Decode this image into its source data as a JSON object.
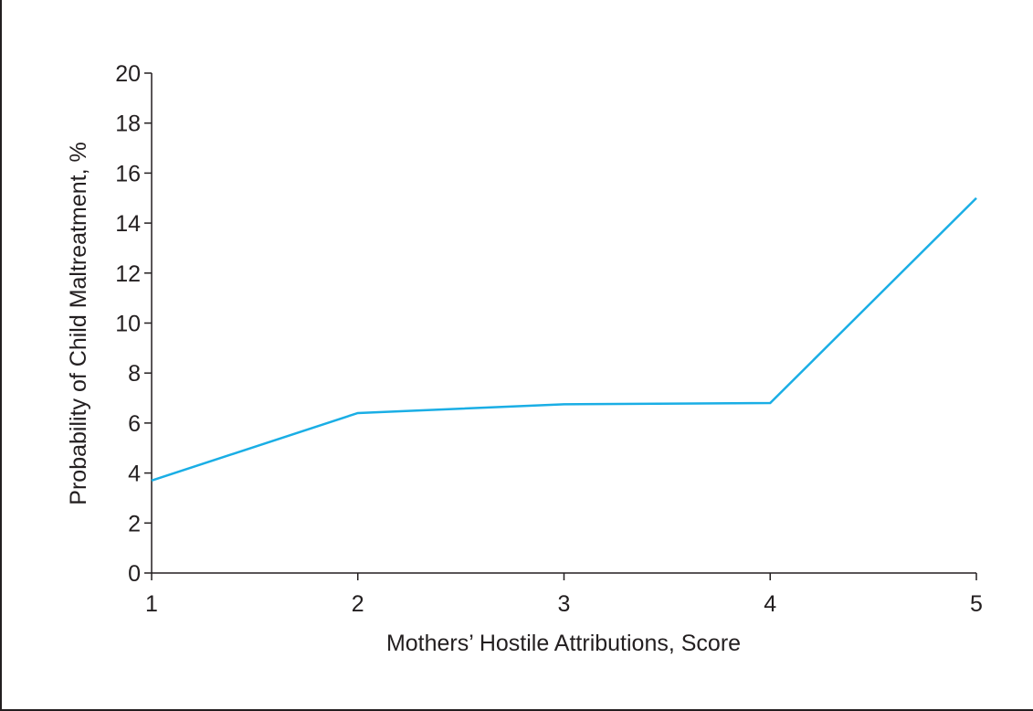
{
  "chart_data": {
    "type": "line",
    "title": "",
    "xlabel": "Mothers’ Hostile Attributions, Score",
    "ylabel": "Probability of Child Maltreatment, %",
    "x": [
      1,
      2,
      3,
      4,
      5
    ],
    "series": [
      {
        "values": [
          3.7,
          6.4,
          6.75,
          6.8,
          15.0
        ]
      }
    ],
    "xlim": [
      1,
      5
    ],
    "ylim": [
      0,
      20
    ],
    "xticks": [
      1,
      2,
      3,
      4,
      5
    ],
    "yticks": [
      0,
      2,
      4,
      6,
      8,
      10,
      12,
      14,
      16,
      18,
      20
    ],
    "grid": false,
    "legend": "none",
    "colors": {
      "line": "#1aaee5",
      "axis": "#231f20"
    }
  }
}
